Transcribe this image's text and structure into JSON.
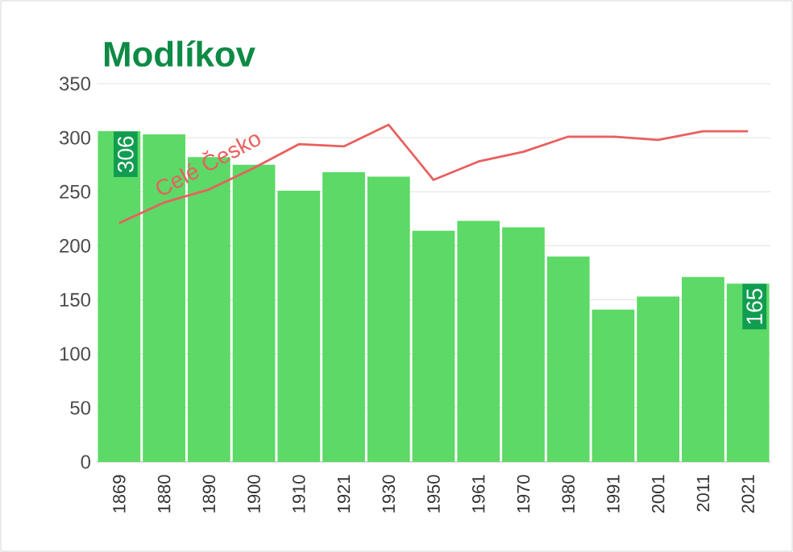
{
  "chart_data": {
    "type": "bar",
    "title": "Modlíkov",
    "categories": [
      "1869",
      "1880",
      "1890",
      "1900",
      "1910",
      "1921",
      "1930",
      "1950",
      "1961",
      "1970",
      "1980",
      "1991",
      "2001",
      "2011",
      "2021"
    ],
    "series": [
      {
        "color": "#5cd966",
        "values": [
          306,
          303,
          282,
          275,
          251,
          268,
          264,
          214,
          223,
          217,
          190,
          141,
          153,
          171,
          165
        ],
        "value_labels": [
          "306",
          null,
          null,
          null,
          null,
          null,
          null,
          null,
          null,
          null,
          null,
          null,
          null,
          null,
          "165"
        ]
      },
      {
        "type": "line",
        "name": "Celé Česko",
        "color": "#e8605f",
        "values": [
          221,
          240,
          252,
          272,
          294,
          292,
          312,
          261,
          278,
          287,
          301,
          301,
          298,
          306,
          306
        ]
      }
    ],
    "ylim": [
      0,
      350
    ],
    "yticks": [
      0,
      50,
      100,
      150,
      200,
      250,
      300,
      350
    ],
    "grid": "y"
  }
}
